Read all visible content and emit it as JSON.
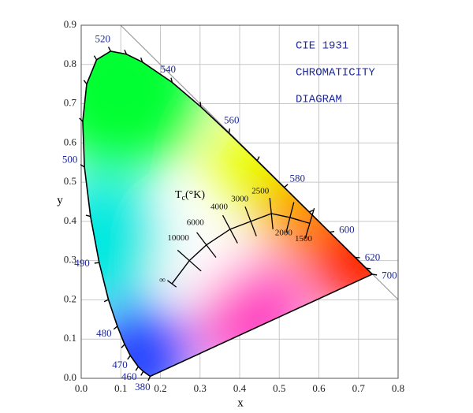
{
  "chart_data": {
    "type": "chromaticity",
    "title": [
      "CIE 1931",
      "CHROMATICITY",
      "DIAGRAM"
    ],
    "xlabel": "x",
    "ylabel": "y",
    "xlim": [
      0,
      0.8
    ],
    "ylim": [
      0,
      0.9
    ],
    "xticks": [
      {
        "value": 0,
        "label": "0.0"
      },
      0.1,
      0.2,
      0.3,
      0.4,
      0.5,
      0.6,
      0.7,
      0.8
    ],
    "yticks": [
      {
        "value": 0,
        "label": "0.0"
      },
      0.1,
      0.2,
      0.3,
      0.4,
      0.5,
      0.6,
      0.7,
      0.8,
      0.9
    ],
    "grid": true,
    "locus": {
      "color": "#000000",
      "labels": [
        "380",
        null,
        "460",
        "470",
        null,
        "480",
        null,
        "490",
        null,
        "500",
        null,
        null,
        null,
        "520",
        null,
        null,
        "540",
        null,
        "560",
        null,
        "580",
        null,
        "600",
        "620",
        null,
        "700"
      ],
      "x": [
        0.1741,
        0.1566,
        0.144,
        0.1241,
        0.1096,
        0.0913,
        0.0687,
        0.0454,
        0.0235,
        0.0082,
        0.0039,
        0.0139,
        0.0389,
        0.0743,
        0.1142,
        0.1547,
        0.2296,
        0.3016,
        0.3731,
        0.4441,
        0.5125,
        0.5752,
        0.627,
        0.6915,
        0.719,
        0.7347
      ],
      "y": [
        0.005,
        0.0177,
        0.0297,
        0.0578,
        0.0868,
        0.1327,
        0.2007,
        0.295,
        0.4127,
        0.5384,
        0.6548,
        0.7502,
        0.812,
        0.8338,
        0.8262,
        0.8059,
        0.7543,
        0.6923,
        0.6245,
        0.5547,
        0.4866,
        0.4242,
        0.3725,
        0.3083,
        0.2809,
        0.2653
      ]
    },
    "planckian": {
      "color": "#000000",
      "title": {
        "main": "T",
        "sub": "c",
        "rest": "(°K)"
      },
      "labels": [
        "1500",
        "2000",
        "2500",
        "3000",
        "4000",
        "6000",
        "10000",
        "∞"
      ],
      "x": [
        0.577,
        0.527,
        0.48,
        0.428,
        0.376,
        0.316,
        0.273,
        0.229
      ],
      "y": [
        0.395,
        0.41,
        0.42,
        0.4,
        0.38,
        0.34,
        0.3,
        0.241
      ]
    }
  }
}
